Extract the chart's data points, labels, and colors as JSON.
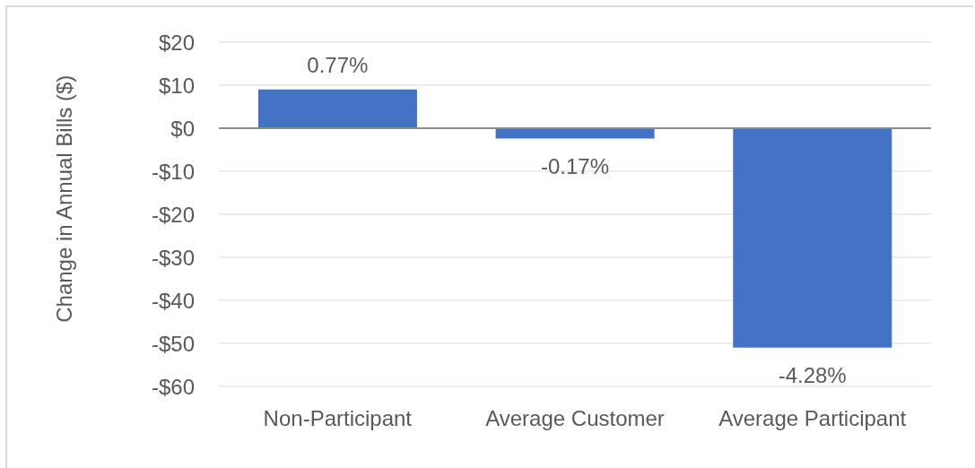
{
  "chart_data": {
    "type": "bar",
    "ylabel": "Change in Annual Bills ($)",
    "categories": [
      "Non-Participant",
      "Average Customer",
      "Average Participant"
    ],
    "values": [
      9,
      -2.4,
      -51
    ],
    "color": "#4472c4",
    "annotations": [
      {
        "text": "0.77%",
        "x": "Non-Participant",
        "y": 9
      },
      {
        "text": "-0.17%",
        "x": "Average Customer",
        "y": -2.4
      },
      {
        "text": "-4.28%",
        "x": "Average Participant",
        "y": -51
      }
    ],
    "ylim": [
      -60,
      20
    ],
    "yticks": [
      {
        "value": 20,
        "label": "$20"
      },
      {
        "value": 10,
        "label": "$10"
      },
      {
        "value": 0,
        "label": "$0"
      },
      {
        "value": -10,
        "label": "-$10"
      },
      {
        "value": -20,
        "label": "-$20"
      },
      {
        "value": -30,
        "label": "-$30"
      },
      {
        "value": -40,
        "label": "-$40"
      },
      {
        "value": -50,
        "label": "-$50"
      },
      {
        "value": -60,
        "label": "-$60"
      }
    ],
    "grid": "y"
  }
}
